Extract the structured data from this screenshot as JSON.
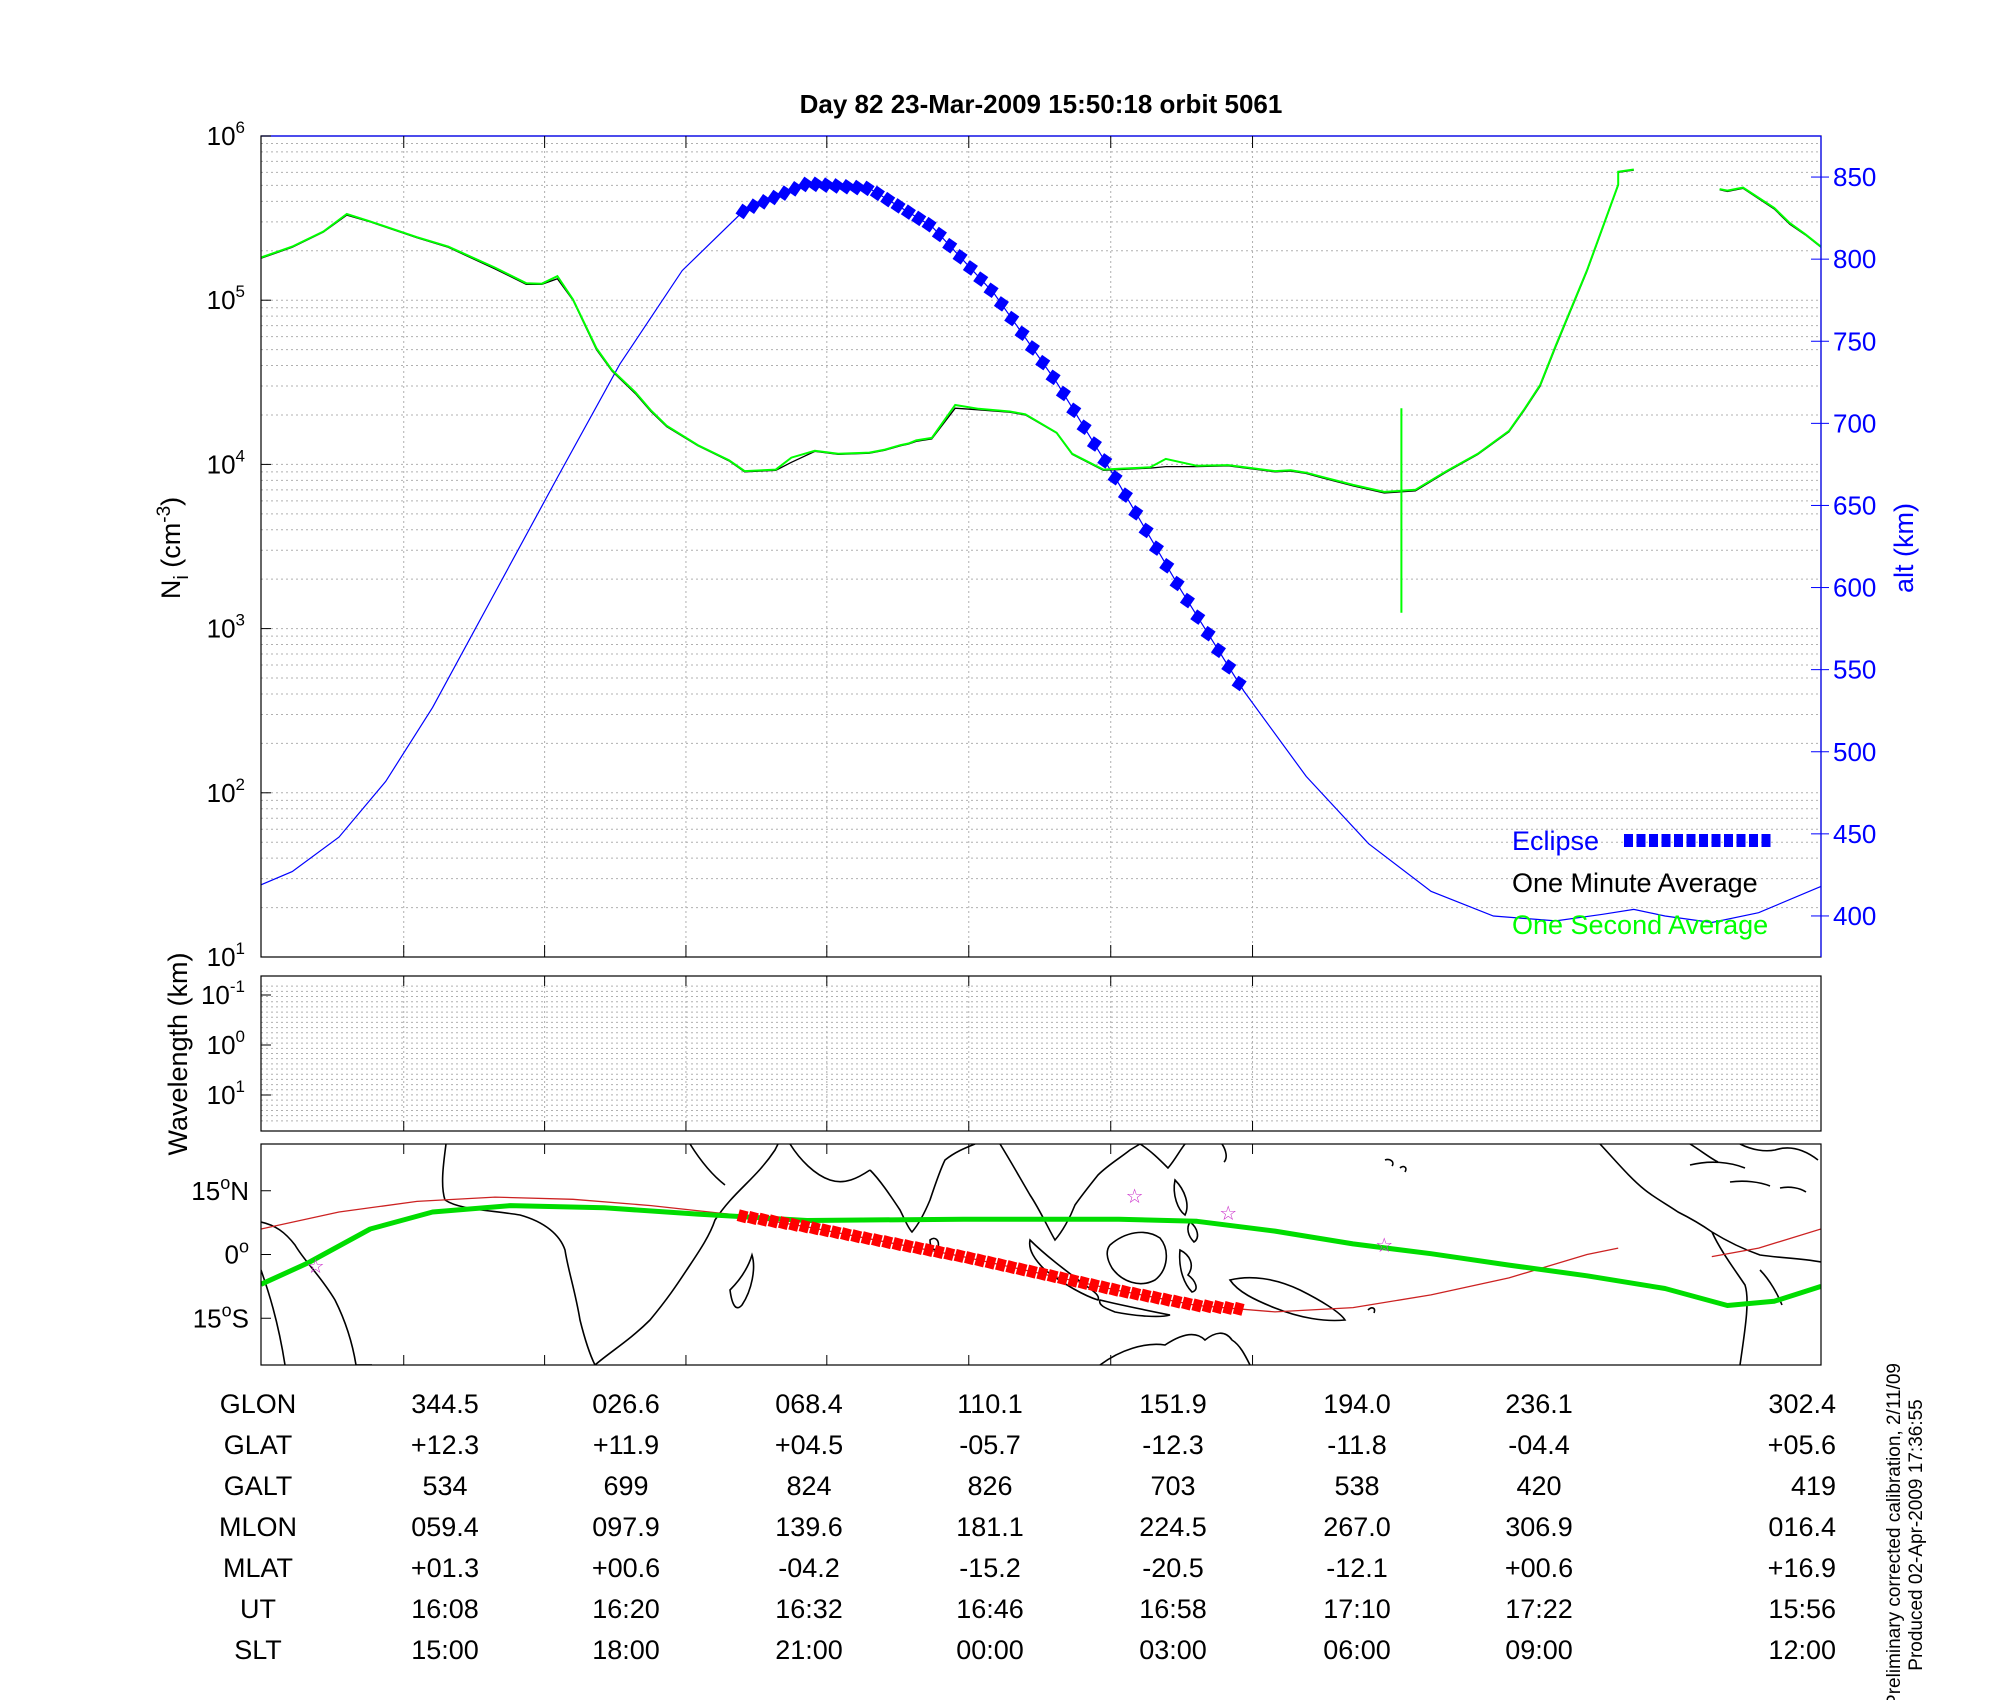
{
  "title": "Day 82  23-Mar-2009 15:50:18   orbit 5061",
  "chart_data": [
    {
      "type": "line",
      "panel": "density",
      "title": "Day 82  23-Mar-2009 15:50:18   orbit 5061",
      "ylabel_base": "N",
      "ylabel_sub": "i",
      "ylabel_unit_pre": "(cm",
      "ylabel_unit_sup": "-3",
      "ylabel_unit_post": ")",
      "ylabel_right": "alt (km)",
      "y_scale": "log",
      "ylim": [
        10,
        1000000
      ],
      "yticks": [
        {
          "base": "10",
          "exp": "1",
          "value": 10
        },
        {
          "base": "10",
          "exp": "2",
          "value": 100
        },
        {
          "base": "10",
          "exp": "3",
          "value": 1000
        },
        {
          "base": "10",
          "exp": "4",
          "value": 10000
        },
        {
          "base": "10",
          "exp": "5",
          "value": 100000
        },
        {
          "base": "10",
          "exp": "6",
          "value": 1000000
        }
      ],
      "y2lim": [
        375,
        875
      ],
      "y2ticks": [
        "400",
        "450",
        "500",
        "550",
        "600",
        "650",
        "700",
        "750",
        "800",
        "850"
      ],
      "x_ticks_ut": [
        "16:08",
        "16:20",
        "16:32",
        "16:46",
        "16:58",
        "17:10",
        "17:22"
      ],
      "grid": true,
      "legend_position": "bottom-right",
      "legend": [
        {
          "label": "Eclipse",
          "color": "#0000ff"
        },
        {
          "label": "One Minute Average",
          "color": "#000000"
        },
        {
          "label": "One Second Average",
          "color": "#00ff00"
        }
      ],
      "series": [
        {
          "name": "One Minute Average",
          "color": "#000000",
          "x": [
            0,
            0.02,
            0.04,
            0.055,
            0.07,
            0.1,
            0.12,
            0.15,
            0.17,
            0.18,
            0.19,
            0.2,
            0.215,
            0.225,
            0.24,
            0.25,
            0.26,
            0.28,
            0.3,
            0.31,
            0.33,
            0.34,
            0.355,
            0.37,
            0.39,
            0.4,
            0.41,
            0.415,
            0.42,
            0.43,
            0.445,
            0.46,
            0.48,
            0.49,
            0.51,
            0.52,
            0.54,
            0.55,
            0.57,
            0.58,
            0.6,
            0.62,
            0.635,
            0.65,
            0.66,
            0.67,
            0.68,
            0.7,
            0.72,
            0.74,
            0.76,
            0.78,
            0.8,
            0.81,
            0.82,
            0.83,
            0.85,
            0.87,
            0.87,
            0.88,
            0.9,
            0.92,
            0.93,
            0.935,
            0.94,
            0.95,
            0.97,
            0.98,
            0.99,
            1.0
          ],
          "y": [
            180000,
            210000,
            260000,
            330000,
            300000,
            240000,
            210000,
            155000,
            125000,
            125000,
            135000,
            100000,
            50000,
            37000,
            27000,
            21000,
            17000,
            13000,
            10500,
            9000,
            9200,
            10300,
            12000,
            11500,
            11700,
            12200,
            13000,
            13300,
            13800,
            14300,
            22000,
            21500,
            20800,
            20000,
            15500,
            11500,
            9200,
            9300,
            9500,
            9700,
            9700,
            9800,
            9400,
            9000,
            9100,
            8800,
            8300,
            7400,
            6700,
            6900,
            9000,
            11500,
            15800,
            21500,
            30000,
            52000,
            150000,
            500000,
            600000,
            620000,
            null,
            null,
            null,
            470000,
            460000,
            480000,
            360000,
            290000,
            250000,
            210000
          ]
        },
        {
          "name": "One Second Average",
          "color": "#00ff00",
          "x": [
            0,
            0.02,
            0.04,
            0.055,
            0.07,
            0.1,
            0.12,
            0.15,
            0.17,
            0.18,
            0.19,
            0.2,
            0.215,
            0.225,
            0.24,
            0.25,
            0.26,
            0.28,
            0.3,
            0.31,
            0.33,
            0.34,
            0.355,
            0.37,
            0.39,
            0.4,
            0.41,
            0.415,
            0.42,
            0.43,
            0.445,
            0.46,
            0.48,
            0.49,
            0.51,
            0.52,
            0.54,
            0.55,
            0.57,
            0.58,
            0.6,
            0.62,
            0.635,
            0.65,
            0.66,
            0.67,
            0.68,
            0.7,
            0.72,
            0.74,
            0.76,
            0.78,
            0.8,
            0.81,
            0.82,
            0.83,
            0.85,
            0.87,
            0.87,
            0.88,
            0.9,
            0.92,
            0.93,
            0.935,
            0.94,
            0.95,
            0.97,
            0.98,
            0.99,
            1.0
          ],
          "y": [
            182000,
            212000,
            262000,
            335000,
            302000,
            242000,
            212000,
            158000,
            127000,
            126000,
            140000,
            101000,
            51000,
            37500,
            27500,
            21300,
            17200,
            13100,
            10600,
            9100,
            9300,
            11000,
            12100,
            11600,
            11800,
            12300,
            13100,
            13400,
            14000,
            14500,
            23000,
            21800,
            21000,
            20200,
            15600,
            11600,
            9300,
            9400,
            9600,
            10800,
            9800,
            9900,
            9500,
            9100,
            9200,
            8900,
            8400,
            7500,
            6800,
            7000,
            9100,
            11600,
            16000,
            21800,
            30500,
            53000,
            152000,
            505000,
            605000,
            625000,
            null,
            null,
            null,
            475000,
            465000,
            485000,
            365000,
            295000,
            252000,
            212000
          ]
        },
        {
          "name": "One Second Average spike",
          "color": "#00ff00",
          "x": [
            0.731,
            0.731
          ],
          "y": [
            22000,
            1250
          ]
        }
      ],
      "altitude_km": {
        "x": [
          0,
          0.02,
          0.05,
          0.08,
          0.11,
          0.15,
          0.19,
          0.23,
          0.27,
          0.31,
          0.35,
          0.39,
          0.43,
          0.47,
          0.51,
          0.55,
          0.59,
          0.63,
          0.67,
          0.71,
          0.75,
          0.79,
          0.83,
          0.86,
          0.88,
          0.9,
          0.93,
          0.96,
          1.0
        ],
        "y": [
          419,
          427,
          448,
          482,
          527,
          597,
          667,
          736,
          793,
          830,
          846,
          843,
          820,
          779,
          725,
          663,
          598,
          537,
          485,
          444,
          415,
          400,
          397,
          401,
          404,
          400,
          396,
          402,
          418
        ]
      },
      "eclipse": {
        "x_start": 0.309,
        "x_end": 0.627
      }
    },
    {
      "type": "line",
      "panel": "wavelength",
      "ylabel": "Wavelength (km)",
      "y_scale": "log",
      "yticks": [
        {
          "base": "10",
          "exp": "-1"
        },
        {
          "base": "10",
          "exp": "0"
        },
        {
          "base": "10",
          "exp": "1"
        }
      ],
      "grid": true,
      "series": []
    },
    {
      "type": "line",
      "panel": "ground-track map",
      "yticks": [
        {
          "deg": "15",
          "sym": "o",
          "hem": "N",
          "value": 15
        },
        {
          "deg": "0",
          "sym": "o",
          "hem": "",
          "value": 0
        },
        {
          "deg": "15",
          "sym": "o",
          "hem": "S",
          "value": -15
        }
      ],
      "ylim": [
        -26,
        26
      ],
      "series": [
        {
          "name": "geographic track",
          "color": "#00dd00",
          "x": [
            0,
            0.03,
            0.07,
            0.11,
            0.16,
            0.22,
            0.28,
            0.35,
            0.45,
            0.55,
            0.6,
            0.65,
            0.7,
            0.75,
            0.8,
            0.85,
            0.9,
            0.94,
            0.97,
            1.0
          ],
          "y": [
            -7,
            -2,
            6,
            10,
            11.5,
            11,
            9.5,
            8,
            8.3,
            8.3,
            7.8,
            5.5,
            2.5,
            0.2,
            -2.5,
            -5,
            -8,
            -12,
            -11,
            -7.5
          ]
        },
        {
          "name": "magnetic equator",
          "color": "#cc2222",
          "x": [
            0,
            0.05,
            0.1,
            0.15,
            0.2,
            0.25,
            0.3,
            0.35,
            0.4,
            0.45,
            0.5,
            0.55,
            0.6,
            0.65,
            0.7,
            0.75,
            0.8,
            0.85,
            0.87,
            null,
            0.93,
            0.96,
            1.0
          ],
          "y": [
            6,
            10,
            12.5,
            13.5,
            13,
            11.5,
            9.5,
            6.5,
            3,
            -0.5,
            -4.5,
            -8.5,
            -12,
            -13.5,
            -12.5,
            -9.5,
            -5.5,
            0,
            1.5,
            null,
            -0.5,
            1.5,
            6
          ]
        }
      ],
      "eclipse": {
        "x_start": 0.309,
        "x_end": 0.627
      },
      "stars": [
        {
          "x": 0.035,
          "y": -2.5
        },
        {
          "x": 0.56,
          "y": 14
        },
        {
          "x": 0.62,
          "y": 10
        },
        {
          "x": 0.72,
          "y": 2.5
        }
      ]
    }
  ],
  "table": {
    "rows": [
      {
        "label": "GLON",
        "values": [
          "344.5",
          "026.6",
          "068.4",
          "110.1",
          "151.9",
          "194.0",
          "236.1",
          "302.4"
        ]
      },
      {
        "label": "GLAT",
        "values": [
          "+12.3",
          "+11.9",
          "+04.5",
          "-05.7",
          "-12.3",
          "-11.8",
          "-04.4",
          "+05.6"
        ]
      },
      {
        "label": "GALT",
        "values": [
          "534",
          "699",
          "824",
          "826",
          "703",
          "538",
          "420",
          "419"
        ]
      },
      {
        "label": "MLON",
        "values": [
          "059.4",
          "097.9",
          "139.6",
          "181.1",
          "224.5",
          "267.0",
          "306.9",
          "016.4"
        ]
      },
      {
        "label": "MLAT",
        "values": [
          "+01.3",
          "+00.6",
          "-04.2",
          "-15.2",
          "-20.5",
          "-12.1",
          "+00.6",
          "+16.9"
        ]
      },
      {
        "label": "UT",
        "values": [
          "16:08",
          "16:20",
          "16:32",
          "16:46",
          "16:58",
          "17:10",
          "17:22",
          "15:56"
        ]
      },
      {
        "label": "SLT",
        "values": [
          "15:00",
          "18:00",
          "21:00",
          "00:00",
          "03:00",
          "06:00",
          "09:00",
          "12:00"
        ]
      }
    ]
  },
  "notes": {
    "line1": "Preliminary corrected calibration, 2/11/09",
    "line2": "Produced 02-Apr-2009 17:36:55"
  },
  "colors": {
    "altitude": "#0000ff",
    "eclipse": "#0000ff",
    "eclipse_map": "#ff0000",
    "one_minute": "#000000",
    "one_second": "#00ff00",
    "grid": "#b0b0b0"
  }
}
